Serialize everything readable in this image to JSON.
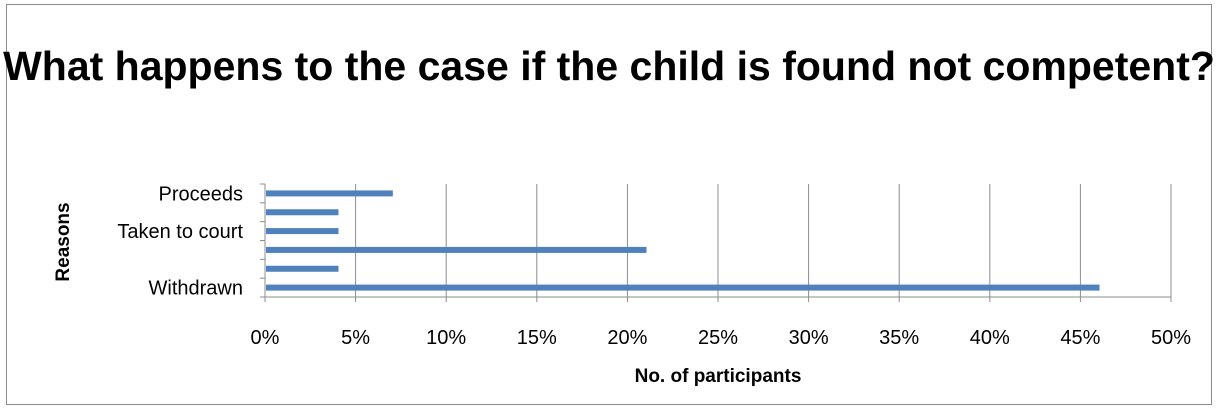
{
  "chart_data": {
    "type": "bar",
    "orientation": "horizontal",
    "title": "What happens to the case if the child is found not competent?",
    "xlabel": "No. of participants",
    "ylabel": "Reasons",
    "categories": [
      "Withdrawn",
      "",
      "",
      "Taken to court",
      "",
      "Proceeds"
    ],
    "values": [
      0.46,
      0.04,
      0.21,
      0.04,
      0.04,
      0.07
    ],
    "xlim": [
      0,
      0.5
    ],
    "xticks": [
      "0%",
      "5%",
      "10%",
      "15%",
      "20%",
      "25%",
      "30%",
      "35%",
      "40%",
      "45%",
      "50%"
    ],
    "grid": true,
    "legend": "none",
    "bar_color": "#4f81bd"
  }
}
